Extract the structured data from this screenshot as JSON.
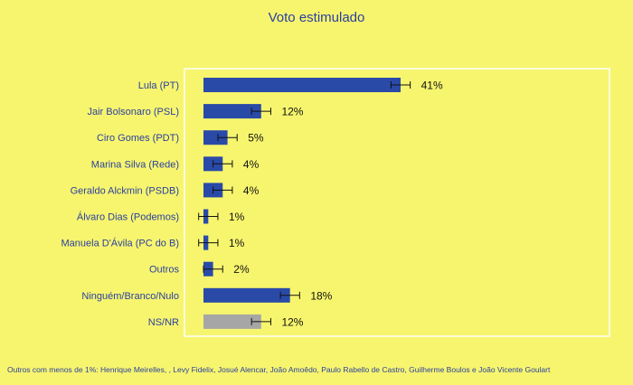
{
  "chart_data": {
    "type": "bar",
    "orientation": "horizontal",
    "title": "Voto estimulado",
    "categories": [
      "Lula (PT)",
      "Jair Bolsonaro (PSL)",
      "Ciro Gomes (PDT)",
      "Marina Silva (Rede)",
      "Geraldo Alckmin (PSDB)",
      "Álvaro Dias (Podemos)",
      "Manuela D'Ávila (PC do B)",
      "Outros",
      "Ninguém/Branco/Nulo",
      "NS/NR"
    ],
    "values": [
      41,
      12,
      5,
      4,
      4,
      1,
      1,
      2,
      18,
      12
    ],
    "value_labels": [
      "41%",
      "12%",
      "5%",
      "4%",
      "4%",
      "1%",
      "1%",
      "2%",
      "18%",
      "12%"
    ],
    "error_margin": 2,
    "bar_colors": [
      "#2a4aa8",
      "#2a4aa8",
      "#2a4aa8",
      "#2a4aa8",
      "#2a4aa8",
      "#2a4aa8",
      "#2a4aa8",
      "#2a4aa8",
      "#2a4aa8",
      "#a6a6a6"
    ],
    "xlim": [
      0,
      45
    ],
    "grid": false,
    "legend": "none"
  },
  "footnote": "Outros com menos de 1%: Henrique Meirelles, , Levy Fidelix, Josué Alencar, João Amoêdo, Paulo Rabello de Castro, Guilherme Boulos e João Vicente Goulart"
}
